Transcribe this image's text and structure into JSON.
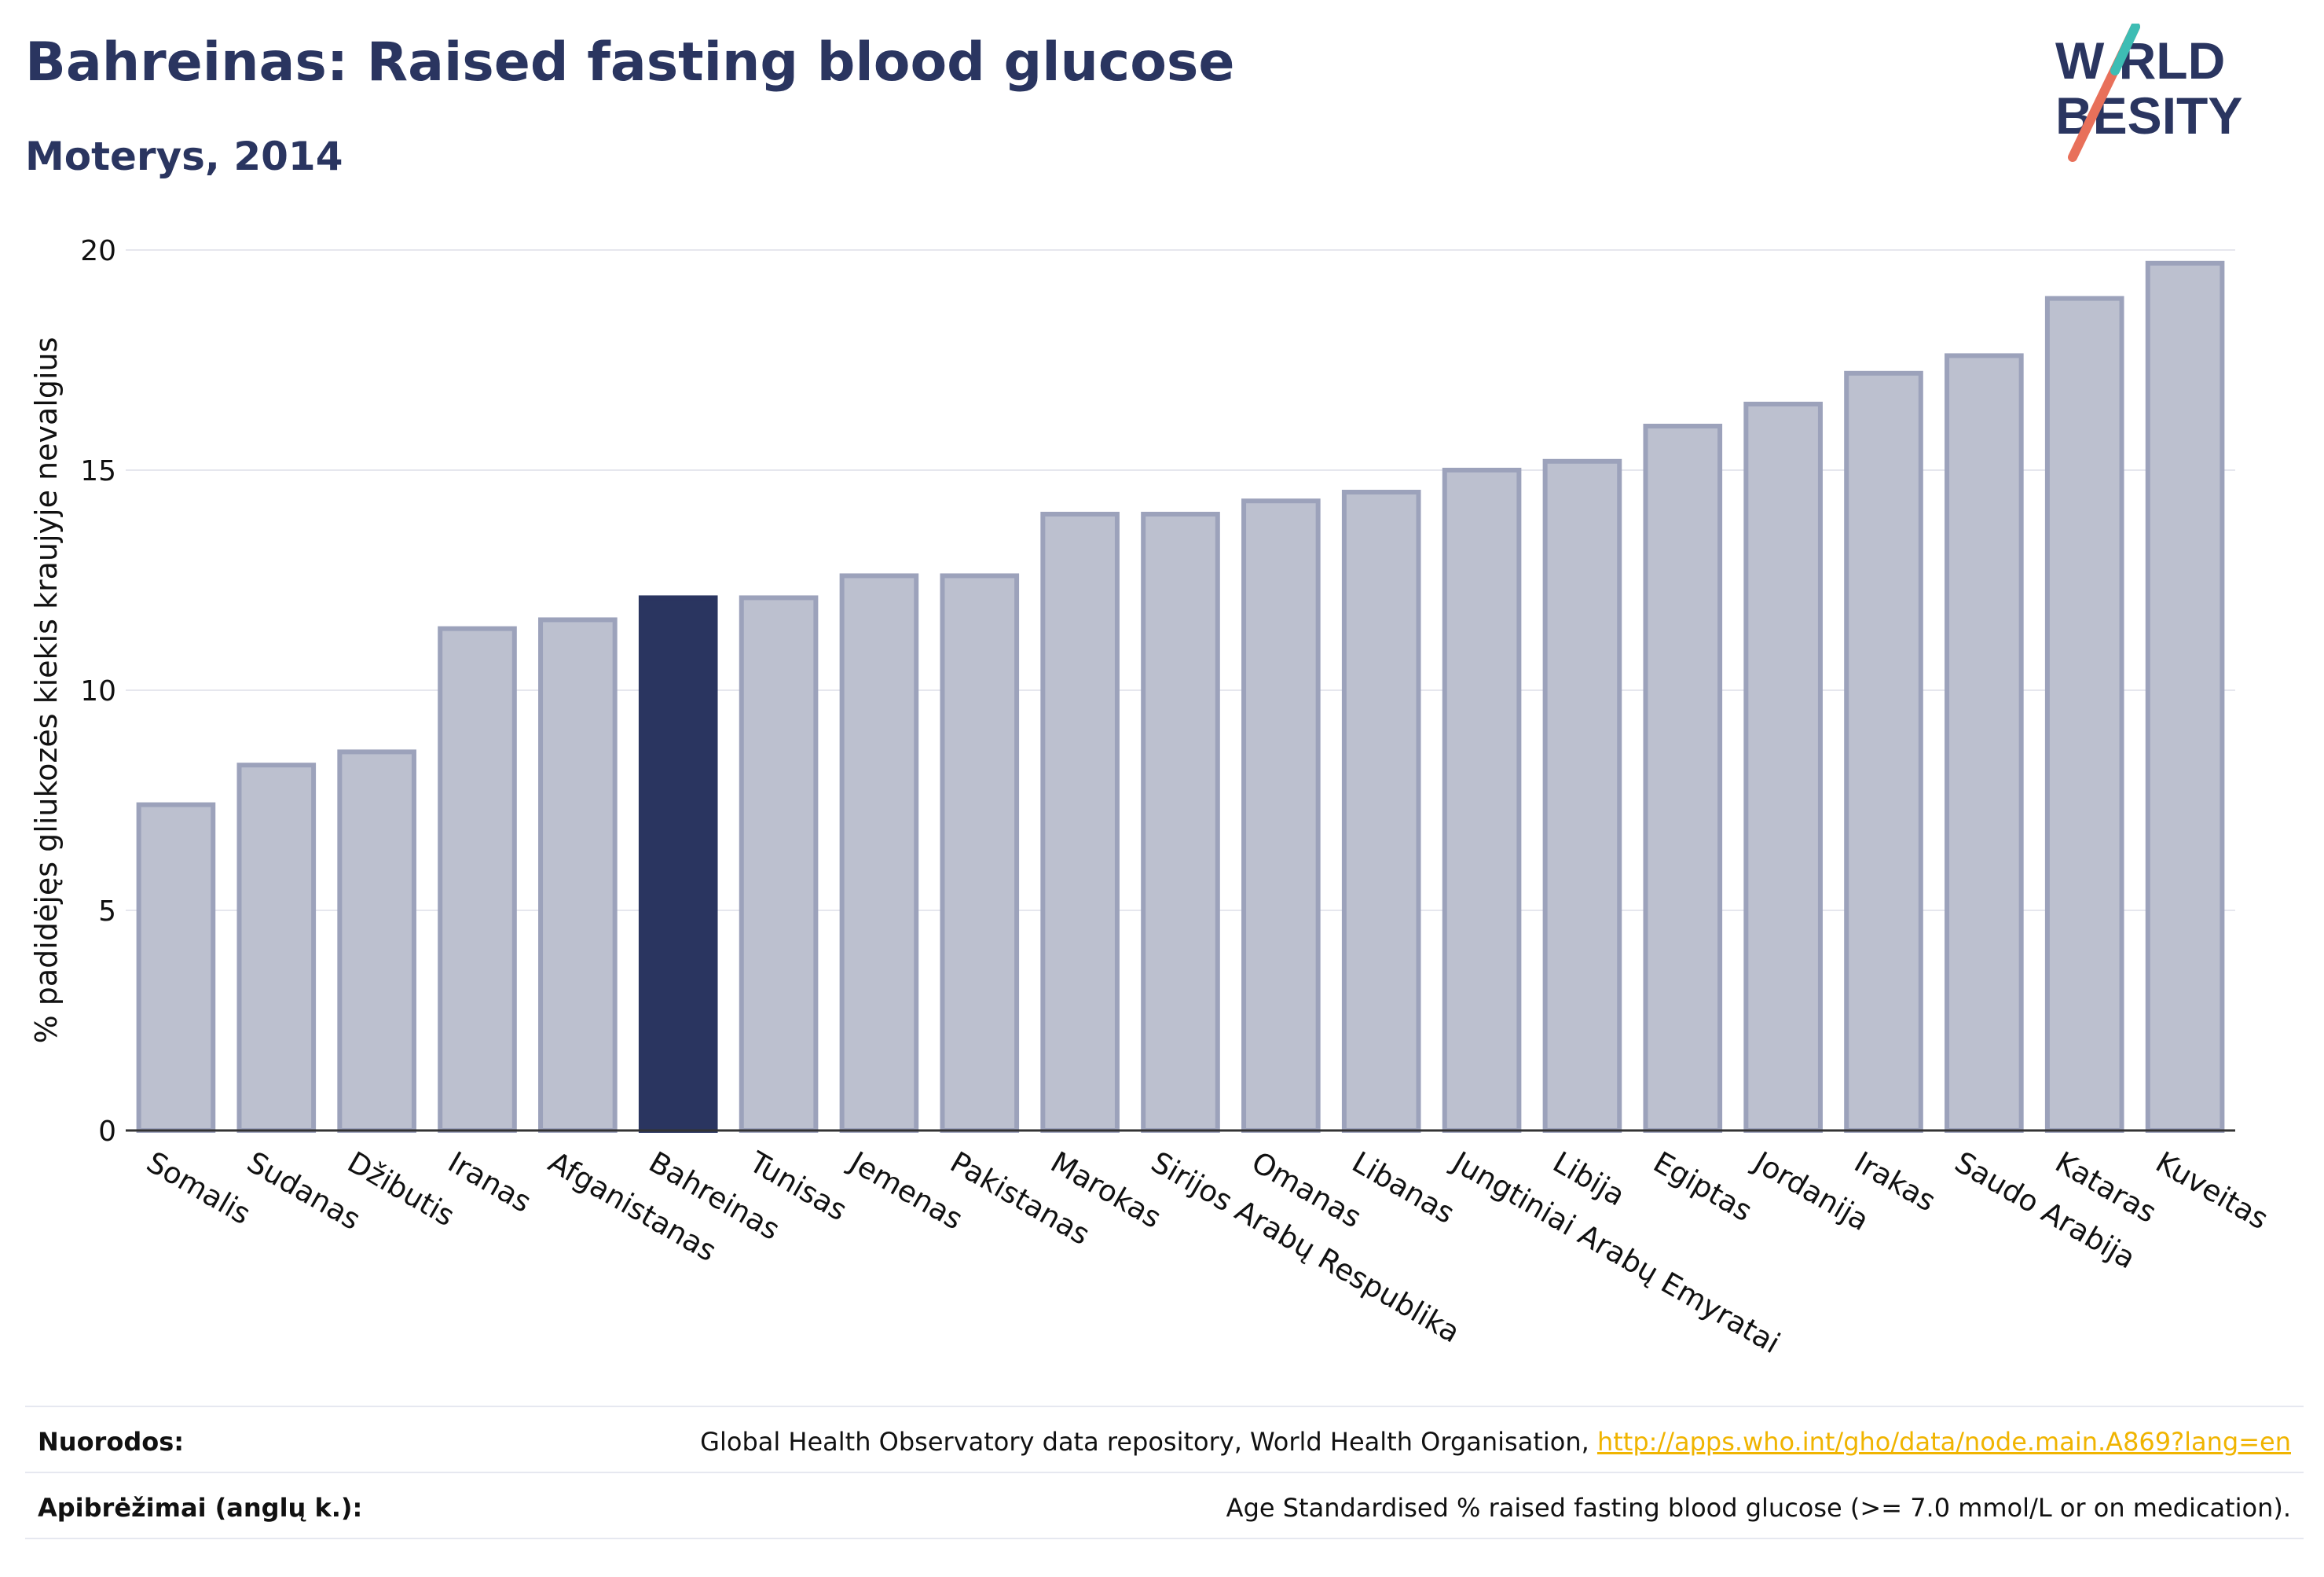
{
  "header": {
    "title": "Bahreinas: Raised fasting blood glucose",
    "subtitle": "Moterys, 2014"
  },
  "logo": {
    "line1": "W RLD",
    "line2": "BESITY",
    "text": "WORLD OBESITY",
    "colors": {
      "text": "#2a3560",
      "slash_teal": "#3dbdb4",
      "slash_red": "#e8705a"
    }
  },
  "chart_data": {
    "type": "bar",
    "title": "Bahreinas: Raised fasting blood glucose",
    "subtitle": "Moterys, 2014",
    "xlabel": "",
    "ylabel": "% padidėjęs gliukozės kiekis kraujyje nevalgius",
    "ylim": [
      0,
      20
    ],
    "yticks": [
      0,
      5,
      10,
      15,
      20
    ],
    "grid": true,
    "categories": [
      "Somalis",
      "Sudanas",
      "Džibutis",
      "Iranas",
      "Afganistanas",
      "Bahreinas",
      "Tunisas",
      "Jemenas",
      "Pakistanas",
      "Marokas",
      "Sirijos Arabų Respublika",
      "Omanas",
      "Libanas",
      "Jungtiniai Arabų Emyratai",
      "Libija",
      "Egiptas",
      "Jordanija",
      "Irakas",
      "Saudo Arabija",
      "Kataras",
      "Kuveitas"
    ],
    "values": [
      7.4,
      8.3,
      8.6,
      11.4,
      11.6,
      12.1,
      12.1,
      12.6,
      12.6,
      14.0,
      14.0,
      14.3,
      14.5,
      15.0,
      15.2,
      16.0,
      16.5,
      17.2,
      17.6,
      18.9,
      19.7
    ],
    "highlight": "Bahreinas",
    "colors": {
      "bar": "#bcc0cf",
      "bar_border": "#9ca2bb",
      "highlight": "#2a3560"
    }
  },
  "footer": {
    "sources_label": "Nuorodos:",
    "sources_text": "Global Health Observatory data repository, World Health Organisation, ",
    "sources_link": "http://apps.who.int/gho/data/node.main.A869?lang=en",
    "definitions_label": "Apibrėžimai (anglų k.):",
    "definitions_text": "Age Standardised % raised fasting blood glucose (>= 7.0 mmol/L or on medication)."
  }
}
